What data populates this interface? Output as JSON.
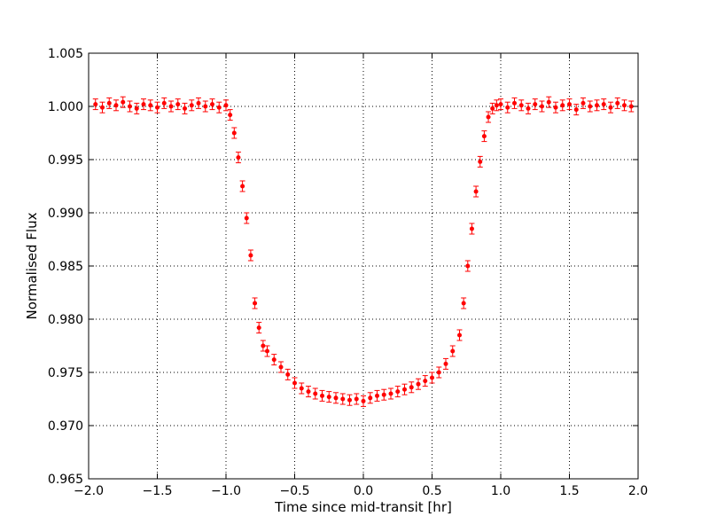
{
  "chart_data": {
    "type": "scatter",
    "title": "",
    "xlabel": "Time since mid-transit [hr]",
    "ylabel": "Normalised Flux",
    "xlim": [
      -2.0,
      2.0
    ],
    "ylim": [
      0.965,
      1.005
    ],
    "xticks": [
      "−2.0",
      "−1.5",
      "−1.0",
      "−0.5",
      "0.0",
      "0.5",
      "1.0",
      "1.5",
      "2.0"
    ],
    "yticks": [
      "0.965",
      "0.970",
      "0.975",
      "0.980",
      "0.985",
      "0.990",
      "0.995",
      "1.000",
      "1.005"
    ],
    "grid": true,
    "marker_color": "#ff0000",
    "series": [
      {
        "x": [
          -1.95,
          -1.9,
          -1.85,
          -1.8,
          -1.75,
          -1.7,
          -1.65,
          -1.6,
          -1.55,
          -1.5,
          -1.45,
          -1.4,
          -1.35,
          -1.3,
          -1.25,
          -1.2,
          -1.15,
          -1.1,
          -1.05,
          -1.0,
          -0.97,
          -0.94,
          -0.91,
          -0.88,
          -0.85,
          -0.82,
          -0.79,
          -0.76,
          -0.73,
          -0.7,
          -0.65,
          -0.6,
          -0.55,
          -0.5,
          -0.45,
          -0.4,
          -0.35,
          -0.3,
          -0.25,
          -0.2,
          -0.15,
          -0.1,
          -0.05,
          0.0,
          0.05,
          0.1,
          0.15,
          0.2,
          0.25,
          0.3,
          0.35,
          0.4,
          0.45,
          0.5,
          0.55,
          0.6,
          0.65,
          0.7,
          0.73,
          0.76,
          0.79,
          0.82,
          0.85,
          0.88,
          0.91,
          0.94,
          0.97,
          1.0,
          1.05,
          1.1,
          1.15,
          1.2,
          1.25,
          1.3,
          1.35,
          1.4,
          1.45,
          1.5,
          1.55,
          1.6,
          1.65,
          1.7,
          1.75,
          1.8,
          1.85,
          1.9,
          1.95
        ],
        "y": [
          1.0002,
          0.9999,
          1.0003,
          1.0001,
          1.0004,
          1.0,
          0.9998,
          1.0002,
          1.0001,
          0.9999,
          1.0003,
          1.0,
          1.0002,
          0.9998,
          1.0001,
          1.0003,
          1.0,
          1.0002,
          0.9999,
          1.0001,
          0.9992,
          0.9975,
          0.9952,
          0.9925,
          0.9895,
          0.986,
          0.9815,
          0.9792,
          0.9775,
          0.977,
          0.9762,
          0.9755,
          0.9748,
          0.974,
          0.9735,
          0.9732,
          0.973,
          0.9728,
          0.9727,
          0.9726,
          0.9725,
          0.9724,
          0.9725,
          0.9723,
          0.9726,
          0.9728,
          0.9729,
          0.973,
          0.9732,
          0.9734,
          0.9736,
          0.9739,
          0.9742,
          0.9745,
          0.975,
          0.9758,
          0.977,
          0.9785,
          0.9815,
          0.985,
          0.9885,
          0.992,
          0.9948,
          0.9972,
          0.999,
          0.9998,
          1.0001,
          1.0002,
          0.9999,
          1.0003,
          1.0001,
          0.9998,
          1.0002,
          1.0,
          1.0004,
          0.9999,
          1.0001,
          1.0002,
          0.9997,
          1.0003,
          1.0,
          1.0001,
          1.0002,
          0.9999,
          1.0003,
          1.0001,
          1.0
        ]
      }
    ]
  }
}
